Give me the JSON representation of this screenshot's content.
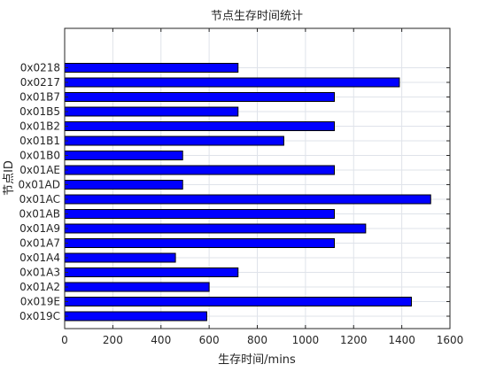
{
  "chart_data": {
    "type": "bar",
    "orientation": "horizontal",
    "title": "节点生存时间统计",
    "xlabel": "生存时间/mins",
    "ylabel": "节点ID",
    "categories": [
      "0x019C",
      "0x019E",
      "0x01A2",
      "0x01A3",
      "0x01A4",
      "0x01A7",
      "0x01A9",
      "0x01AB",
      "0x01AC",
      "0x01AD",
      "0x01AE",
      "0x01B0",
      "0x01B1",
      "0x01B2",
      "0x01B5",
      "0x01B7",
      "0x0217",
      "0x0218"
    ],
    "values": [
      590,
      1440,
      600,
      720,
      460,
      1120,
      1250,
      1120,
      1520,
      490,
      1120,
      490,
      910,
      1120,
      720,
      1120,
      1390,
      720
    ],
    "xlim": [
      0,
      1600
    ],
    "xticks": [
      0,
      200,
      400,
      600,
      800,
      1000,
      1200,
      1400,
      1600
    ],
    "grid": true,
    "bar_color": "#0000ff",
    "edge_color": "#000000"
  }
}
